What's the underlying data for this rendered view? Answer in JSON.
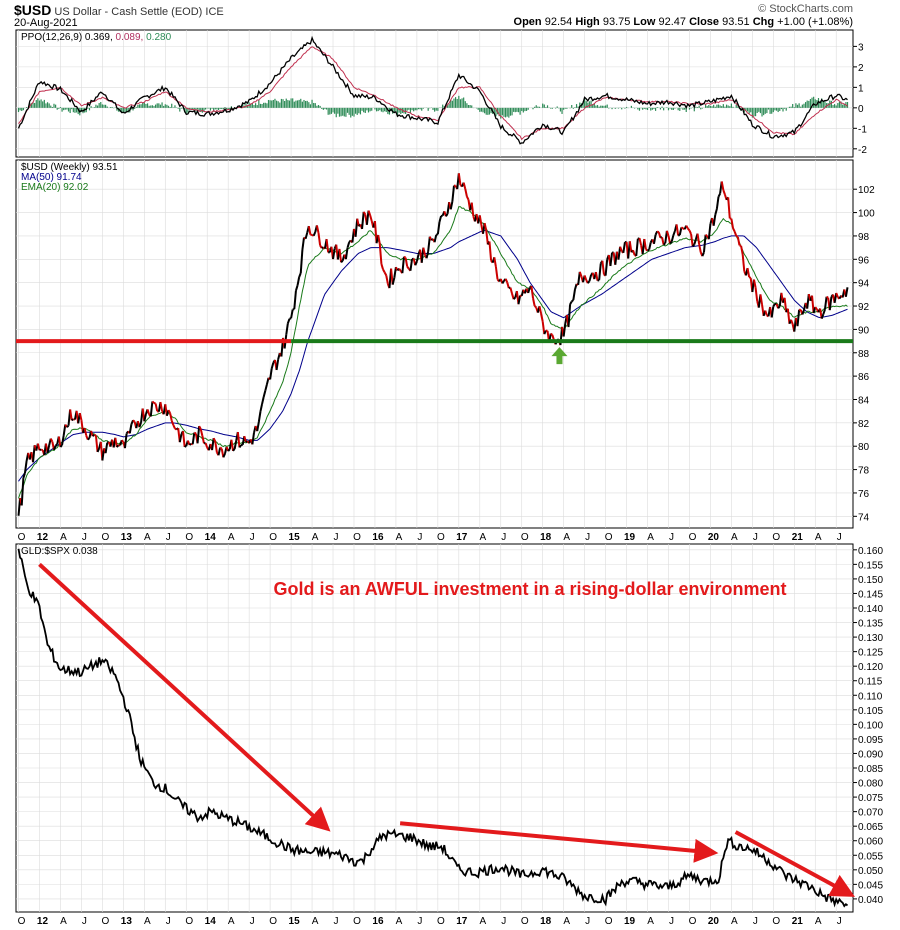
{
  "header": {
    "symbol": "$USD",
    "name": "US Dollar - Cash Settle (EOD)",
    "exchange": "ICE",
    "date": "20-Aug-2021",
    "credit": "© StockCharts.com",
    "quote": {
      "open_label": "Open",
      "open": "92.54",
      "high_label": "High",
      "high": "93.75",
      "low_label": "Low",
      "low": "92.47",
      "close_label": "Close",
      "close": "93.51",
      "chg_label": "Chg",
      "chg": "+1.00 (+1.08%)"
    }
  },
  "chart_data": [
    {
      "type": "line",
      "panel": "ppo",
      "legend": [
        {
          "text": "PPO(12,26,9) 0.369, ",
          "color": "#000000"
        },
        {
          "text": "0.089, ",
          "color": "#b03060"
        },
        {
          "text": "0.280",
          "color": "#2e8b57"
        }
      ],
      "ylim": [
        -2.4,
        3.8
      ],
      "y_ticks": [
        "3",
        "2",
        "1",
        "0",
        "-1",
        "-2"
      ],
      "x": [
        2011.75,
        2012.0,
        2012.25,
        2012.5,
        2012.75,
        2013.0,
        2013.25,
        2013.5,
        2013.75,
        2014.0,
        2014.25,
        2014.5,
        2014.75,
        2015.0,
        2015.25,
        2015.5,
        2015.75,
        2016.0,
        2016.25,
        2016.5,
        2016.75,
        2017.0,
        2017.25,
        2017.5,
        2017.75,
        2018.0,
        2018.25,
        2018.5,
        2018.75,
        2019.0,
        2019.25,
        2019.5,
        2019.75,
        2020.0,
        2020.25,
        2020.5,
        2020.75,
        2021.0,
        2021.25,
        2021.5,
        2021.64
      ],
      "series": [
        {
          "values": [
            -1.0,
            1.3,
            0.9,
            -0.2,
            0.8,
            -0.3,
            0.5,
            1.0,
            -0.2,
            -0.3,
            -0.1,
            0.3,
            1.2,
            2.4,
            3.3,
            2.0,
            0.6,
            0.5,
            -0.3,
            -0.5,
            -0.7,
            1.6,
            0.8,
            -0.9,
            -1.7,
            -0.8,
            -1.2,
            0.4,
            0.6,
            0.4,
            0.2,
            0.3,
            0.1,
            0.3,
            0.6,
            -0.8,
            -1.4,
            -1.2,
            0.2,
            0.6,
            0.37
          ],
          "color": "#000000"
        },
        {
          "values": [
            -0.8,
            0.8,
            1.0,
            0.1,
            0.5,
            0.0,
            0.3,
            0.8,
            0.0,
            -0.2,
            -0.1,
            0.1,
            0.8,
            2.0,
            3.0,
            2.4,
            1.0,
            0.6,
            0.0,
            -0.4,
            -0.6,
            1.0,
            1.0,
            -0.4,
            -1.5,
            -1.0,
            -1.0,
            0.0,
            0.5,
            0.4,
            0.3,
            0.3,
            0.2,
            0.2,
            0.4,
            -0.4,
            -1.2,
            -1.3,
            -0.3,
            0.4,
            0.089
          ],
          "color": "#c0304f"
        }
      ],
      "histogram_color": "#2e8b57"
    },
    {
      "type": "line",
      "panel": "price",
      "legend": [
        {
          "text": "$USD (Weekly) 93.51",
          "color": "#000000"
        },
        {
          "text": "MA(50) 91.74",
          "color": "#00008b"
        },
        {
          "text": "EMA(20) 92.02",
          "color": "#1a7a1a"
        }
      ],
      "ylim": [
        73,
        104.5
      ],
      "y_ticks": [
        "102",
        "100",
        "98",
        "96",
        "94",
        "92",
        "90",
        "88",
        "86",
        "84",
        "82",
        "80",
        "78",
        "76",
        "74"
      ],
      "x": [
        2011.75,
        2011.85,
        2012.0,
        2012.2,
        2012.4,
        2012.55,
        2012.75,
        2012.9,
        2013.0,
        2013.15,
        2013.3,
        2013.5,
        2013.6,
        2013.75,
        2013.9,
        2014.05,
        2014.2,
        2014.35,
        2014.5,
        2014.6,
        2014.75,
        2014.9,
        2015.0,
        2015.1,
        2015.2,
        2015.4,
        2015.6,
        2015.8,
        2015.95,
        2016.15,
        2016.3,
        2016.5,
        2016.7,
        2016.9,
        2017.0,
        2017.15,
        2017.3,
        2017.5,
        2017.7,
        2017.85,
        2018.0,
        2018.1,
        2018.25,
        2018.45,
        2018.7,
        2018.9,
        2019.1,
        2019.3,
        2019.5,
        2019.7,
        2019.9,
        2020.05,
        2020.15,
        2020.25,
        2020.4,
        2020.55,
        2020.7,
        2020.85,
        2021.0,
        2021.15,
        2021.3,
        2021.45,
        2021.64
      ],
      "series": [
        {
          "name": "$USD",
          "values": [
            74.0,
            78.5,
            80.0,
            79.8,
            83.0,
            81.5,
            79.5,
            80.5,
            79.8,
            82.0,
            83.3,
            83.5,
            82.0,
            80.0,
            81.0,
            80.2,
            79.8,
            80.5,
            80.3,
            81.5,
            86.0,
            88.5,
            91.0,
            95.0,
            99.0,
            97.5,
            96.0,
            99.0,
            100.0,
            94.0,
            95.5,
            96.0,
            97.5,
            101.0,
            103.0,
            100.5,
            98.5,
            94.0,
            92.5,
            93.5,
            90.5,
            89.2,
            89.5,
            94.5,
            95.0,
            96.5,
            97.0,
            97.5,
            98.0,
            98.5,
            97.0,
            99.5,
            102.5,
            99.5,
            95.5,
            93.0,
            91.0,
            92.5,
            90.0,
            92.5,
            91.5,
            92.5,
            93.5
          ],
          "color": "#000000"
        },
        {
          "name": "MA(50)",
          "values": [
            77.0,
            78.0,
            79.0,
            80.0,
            81.0,
            81.2,
            81.2,
            81.0,
            80.8,
            81.0,
            81.5,
            82.0,
            82.0,
            81.8,
            81.5,
            81.3,
            81.0,
            80.8,
            80.5,
            80.5,
            81.5,
            83.0,
            84.5,
            86.5,
            89.0,
            93.0,
            95.0,
            96.5,
            97.0,
            97.0,
            96.8,
            96.5,
            96.5,
            97.0,
            97.5,
            98.0,
            98.5,
            98.0,
            96.0,
            94.0,
            92.5,
            91.5,
            91.0,
            92.0,
            93.0,
            94.0,
            95.0,
            96.0,
            96.5,
            97.0,
            97.2,
            97.5,
            97.8,
            98.0,
            98.0,
            97.0,
            95.5,
            94.0,
            92.5,
            91.5,
            91.0,
            91.2,
            91.74
          ],
          "color": "#00008b"
        },
        {
          "name": "EMA(20)",
          "values": [
            75.5,
            77.5,
            79.0,
            79.8,
            81.5,
            81.5,
            80.5,
            80.3,
            80.2,
            81.0,
            82.5,
            83.0,
            82.5,
            81.2,
            80.8,
            80.5,
            80.0,
            80.3,
            80.3,
            80.8,
            83.0,
            85.5,
            88.0,
            92.0,
            95.5,
            97.0,
            96.5,
            97.5,
            98.5,
            96.5,
            96.0,
            96.0,
            96.5,
            98.5,
            100.5,
            100.0,
            99.0,
            96.5,
            94.0,
            93.5,
            92.0,
            90.5,
            90.0,
            92.0,
            93.5,
            95.0,
            96.0,
            96.8,
            97.3,
            97.8,
            97.5,
            98.3,
            99.5,
            99.0,
            96.5,
            94.5,
            92.5,
            92.0,
            91.0,
            91.5,
            91.5,
            92.0,
            92.02
          ],
          "color": "#1a7a1a"
        }
      ],
      "support_level": 89,
      "annotation_arrow_x": 2018.2
    },
    {
      "type": "line",
      "panel": "ratio",
      "legend": [
        {
          "text": "GLD:$SPX 0.038",
          "color": "#000000"
        }
      ],
      "annotation": "Gold is an AWFUL investment in a rising-dollar environment",
      "ylim": [
        0.0355,
        0.162
      ],
      "y_ticks": [
        "0.160",
        "0.155",
        "0.150",
        "0.145",
        "0.140",
        "0.135",
        "0.130",
        "0.125",
        "0.120",
        "0.115",
        "0.110",
        "0.105",
        "0.100",
        "0.095",
        "0.090",
        "0.085",
        "0.080",
        "0.075",
        "0.070",
        "0.065",
        "0.060",
        "0.055",
        "0.050",
        "0.045",
        "0.040"
      ],
      "x": [
        2011.75,
        2011.85,
        2012.0,
        2012.1,
        2012.25,
        2012.5,
        2012.75,
        2012.9,
        2013.05,
        2013.2,
        2013.35,
        2013.5,
        2013.7,
        2013.9,
        2014.05,
        2014.2,
        2014.4,
        2014.6,
        2014.8,
        2015.0,
        2015.2,
        2015.4,
        2015.6,
        2015.75,
        2015.85,
        2015.95,
        2016.1,
        2016.25,
        2016.45,
        2016.65,
        2016.8,
        2017.0,
        2017.2,
        2017.5,
        2017.75,
        2018.0,
        2018.25,
        2018.5,
        2018.75,
        2018.95,
        2019.1,
        2019.25,
        2019.5,
        2019.75,
        2019.95,
        2020.1,
        2020.2,
        2020.35,
        2020.5,
        2020.7,
        2020.9,
        2021.05,
        2021.2,
        2021.35,
        2021.5,
        2021.64
      ],
      "series": [
        {
          "name": "GLD:$SPX",
          "values": [
            0.16,
            0.148,
            0.14,
            0.127,
            0.119,
            0.118,
            0.122,
            0.117,
            0.105,
            0.088,
            0.08,
            0.078,
            0.072,
            0.068,
            0.07,
            0.068,
            0.066,
            0.063,
            0.06,
            0.057,
            0.056,
            0.056,
            0.055,
            0.053,
            0.053,
            0.057,
            0.062,
            0.062,
            0.061,
            0.058,
            0.058,
            0.05,
            0.049,
            0.051,
            0.048,
            0.05,
            0.047,
            0.041,
            0.04,
            0.046,
            0.046,
            0.045,
            0.044,
            0.048,
            0.046,
            0.047,
            0.06,
            0.058,
            0.057,
            0.053,
            0.048,
            0.046,
            0.044,
            0.041,
            0.039,
            0.038
          ],
          "color": "#000000"
        }
      ]
    }
  ],
  "x_axis_labels": [
    {
      "t": 2011.75,
      "label": "O",
      "bold": false
    },
    {
      "t": 2012.0,
      "label": "12",
      "bold": true
    },
    {
      "t": 2012.25,
      "label": "A",
      "bold": false
    },
    {
      "t": 2012.5,
      "label": "J",
      "bold": false
    },
    {
      "t": 2012.75,
      "label": "O",
      "bold": false
    },
    {
      "t": 2013.0,
      "label": "13",
      "bold": true
    },
    {
      "t": 2013.25,
      "label": "A",
      "bold": false
    },
    {
      "t": 2013.5,
      "label": "J",
      "bold": false
    },
    {
      "t": 2013.75,
      "label": "O",
      "bold": false
    },
    {
      "t": 2014.0,
      "label": "14",
      "bold": true
    },
    {
      "t": 2014.25,
      "label": "A",
      "bold": false
    },
    {
      "t": 2014.5,
      "label": "J",
      "bold": false
    },
    {
      "t": 2014.75,
      "label": "O",
      "bold": false
    },
    {
      "t": 2015.0,
      "label": "15",
      "bold": true
    },
    {
      "t": 2015.25,
      "label": "A",
      "bold": false
    },
    {
      "t": 2015.5,
      "label": "J",
      "bold": false
    },
    {
      "t": 2015.75,
      "label": "O",
      "bold": false
    },
    {
      "t": 2016.0,
      "label": "16",
      "bold": true
    },
    {
      "t": 2016.25,
      "label": "A",
      "bold": false
    },
    {
      "t": 2016.5,
      "label": "J",
      "bold": false
    },
    {
      "t": 2016.75,
      "label": "O",
      "bold": false
    },
    {
      "t": 2017.0,
      "label": "17",
      "bold": true
    },
    {
      "t": 2017.25,
      "label": "A",
      "bold": false
    },
    {
      "t": 2017.5,
      "label": "J",
      "bold": false
    },
    {
      "t": 2017.75,
      "label": "O",
      "bold": false
    },
    {
      "t": 2018.0,
      "label": "18",
      "bold": true
    },
    {
      "t": 2018.25,
      "label": "A",
      "bold": false
    },
    {
      "t": 2018.5,
      "label": "J",
      "bold": false
    },
    {
      "t": 2018.75,
      "label": "O",
      "bold": false
    },
    {
      "t": 2019.0,
      "label": "19",
      "bold": true
    },
    {
      "t": 2019.25,
      "label": "A",
      "bold": false
    },
    {
      "t": 2019.5,
      "label": "J",
      "bold": false
    },
    {
      "t": 2019.75,
      "label": "O",
      "bold": false
    },
    {
      "t": 2020.0,
      "label": "20",
      "bold": true
    },
    {
      "t": 2020.25,
      "label": "A",
      "bold": false
    },
    {
      "t": 2020.5,
      "label": "J",
      "bold": false
    },
    {
      "t": 2020.75,
      "label": "O",
      "bold": false
    },
    {
      "t": 2021.0,
      "label": "21",
      "bold": true
    },
    {
      "t": 2021.25,
      "label": "A",
      "bold": false
    },
    {
      "t": 2021.5,
      "label": "J",
      "bold": false
    }
  ],
  "colors": {
    "red": "#e31a1c",
    "green_line": "#1a7a1a",
    "green_arrow": "#5aa832",
    "grid": "#dcdcdc",
    "up": "#000000",
    "down": "#cc0000"
  }
}
